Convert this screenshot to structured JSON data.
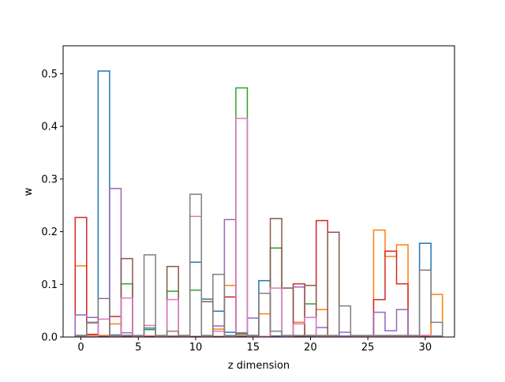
{
  "chart_data": {
    "type": "step",
    "xlabel": "z dimension",
    "ylabel": "w",
    "xlim": [
      -1.55,
      32.55
    ],
    "ylim": [
      0,
      0.553
    ],
    "xticks": [
      0,
      5,
      10,
      15,
      20,
      25,
      30
    ],
    "yticks": [
      0.0,
      0.1,
      0.2,
      0.3,
      0.4,
      0.5
    ],
    "x": [
      0,
      1,
      2,
      3,
      4,
      5,
      6,
      7,
      8,
      9,
      10,
      11,
      12,
      13,
      14,
      15,
      16,
      17,
      18,
      19,
      20,
      21,
      22,
      23,
      24,
      25,
      26,
      27,
      28,
      29,
      30,
      31
    ],
    "series": [
      {
        "color": "#1f77b4",
        "values": [
          0.003,
          0.004,
          0.505,
          0.004,
          0.003,
          0.002,
          0.014,
          0.002,
          0.002,
          0.001,
          0.142,
          0.072,
          0.049,
          0.009,
          0.006,
          0.003,
          0.107,
          0.002,
          0.002,
          0.002,
          0.002,
          0.002,
          0.002,
          0.002,
          0.002,
          0.002,
          0.002,
          0.002,
          0.002,
          0.002,
          0.178,
          0.002
        ]
      },
      {
        "color": "#ff7f0e",
        "values": [
          0.135,
          0.004,
          0.003,
          0.025,
          0.001,
          0.001,
          0.002,
          0.002,
          0.002,
          0.003,
          0.001,
          0.001,
          0.015,
          0.098,
          0.003,
          0.001,
          0.044,
          0.001,
          0.001,
          0.028,
          0.003,
          0.052,
          0.001,
          0.001,
          0.001,
          0.001,
          0.203,
          0.153,
          0.175,
          0.001,
          0.003,
          0.081
        ]
      },
      {
        "color": "#2ca02c",
        "values": [
          0.001,
          0.001,
          0.001,
          0.001,
          0.101,
          0.001,
          0.017,
          0.001,
          0.087,
          0.001,
          0.089,
          0.001,
          0.001,
          0.001,
          0.473,
          0.001,
          0.001,
          0.169,
          0.001,
          0.001,
          0.063,
          0.001,
          0.001,
          0.001,
          0.001,
          0.001,
          0.001,
          0.001,
          0.001,
          0.001,
          0.001,
          0.001
        ]
      },
      {
        "color": "#d62728",
        "values": [
          0.227,
          0.005,
          0.001,
          0.039,
          0.001,
          0.001,
          0.001,
          0.001,
          0.001,
          0.001,
          0.001,
          0.001,
          0.001,
          0.076,
          0.001,
          0.001,
          0.001,
          0.001,
          0.001,
          0.101,
          0.001,
          0.221,
          0.001,
          0.001,
          0.001,
          0.001,
          0.071,
          0.163,
          0.101,
          0.001,
          0.001,
          0.001
        ]
      },
      {
        "color": "#9467bd",
        "values": [
          0.042,
          0.037,
          0.001,
          0.282,
          0.008,
          0.001,
          0.001,
          0.001,
          0.001,
          0.001,
          0.001,
          0.001,
          0.021,
          0.223,
          0.001,
          0.036,
          0.001,
          0.001,
          0.001,
          0.095,
          0.001,
          0.018,
          0.001,
          0.009,
          0.001,
          0.001,
          0.047,
          0.012,
          0.052,
          0.001,
          0.001,
          0.001
        ]
      },
      {
        "color": "#8c564b",
        "values": [
          0.001,
          0.027,
          0.001,
          0.001,
          0.149,
          0.001,
          0.001,
          0.001,
          0.134,
          0.001,
          0.001,
          0.067,
          0.001,
          0.001,
          0.001,
          0.001,
          0.001,
          0.225,
          0.093,
          0.001,
          0.098,
          0.001,
          0.199,
          0.001,
          0.001,
          0.001,
          0.001,
          0.001,
          0.001,
          0.001,
          0.001,
          0.001
        ]
      },
      {
        "color": "#e377c2",
        "values": [
          0.001,
          0.001,
          0.034,
          0.001,
          0.074,
          0.001,
          0.022,
          0.001,
          0.071,
          0.001,
          0.229,
          0.001,
          0.011,
          0.001,
          0.415,
          0.001,
          0.001,
          0.093,
          0.001,
          0.025,
          0.037,
          0.001,
          0.001,
          0.001,
          0.001,
          0.001,
          0.001,
          0.001,
          0.001,
          0.001,
          0.003,
          0.001
        ]
      },
      {
        "color": "#7f7f7f",
        "values": [
          0.003,
          0.028,
          0.073,
          0.003,
          0.003,
          0.003,
          0.156,
          0.003,
          0.011,
          0.003,
          0.271,
          0.003,
          0.119,
          0.003,
          0.008,
          0.003,
          0.083,
          0.011,
          0.003,
          0.003,
          0.003,
          0.003,
          0.003,
          0.059,
          0.003,
          0.003,
          0.003,
          0.003,
          0.003,
          0.003,
          0.127,
          0.028
        ]
      }
    ]
  }
}
